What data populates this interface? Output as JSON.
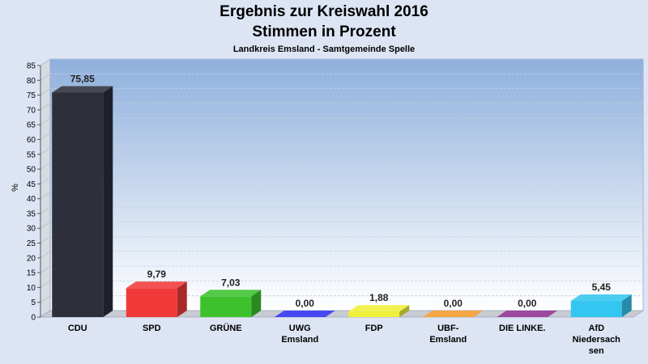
{
  "header": {
    "title_line1": "Ergebnis zur Kreiswahl 2016",
    "title_line2": "Stimmen in Prozent",
    "subtitle": "Landkreis Emsland - Samtgemeinde Spelle"
  },
  "chart_data": {
    "type": "bar",
    "title": "Ergebnis zur Kreiswahl 2016 Stimmen in Prozent",
    "subtitle": "Landkreis Emsland - Samtgemeinde Spelle",
    "ylabel": "%",
    "xlabel": "",
    "ylim": [
      0,
      85
    ],
    "yticks": [
      0,
      5,
      10,
      15,
      20,
      25,
      30,
      35,
      40,
      45,
      50,
      55,
      60,
      65,
      70,
      75,
      80,
      85
    ],
    "grid": true,
    "categories": [
      "CDU",
      "SPD",
      "GRÜNE",
      "UWG Emsland",
      "FDP",
      "UBF-Emsland",
      "DIE LINKE.",
      "AfD Niedersachsen"
    ],
    "category_lines": [
      [
        "CDU"
      ],
      [
        "SPD"
      ],
      [
        "GRÜNE"
      ],
      [
        "UWG",
        "Emsland"
      ],
      [
        "FDP"
      ],
      [
        "UBF-",
        "Emsland"
      ],
      [
        "DIE LINKE."
      ],
      [
        "AfD",
        "Niedersach",
        "sen"
      ]
    ],
    "values": [
      75.85,
      9.79,
      7.03,
      0.0,
      1.88,
      0.0,
      0.0,
      5.45
    ],
    "value_labels": [
      "75,85",
      "9,79",
      "7,03",
      "0,00",
      "1,88",
      "0,00",
      "0,00",
      "5,45"
    ],
    "colors": [
      "#2d2f3a",
      "#f23a3a",
      "#3dc22e",
      "#2f2ff0",
      "#eef03a",
      "#f39a2a",
      "#8e2f92",
      "#33c6f0"
    ]
  }
}
